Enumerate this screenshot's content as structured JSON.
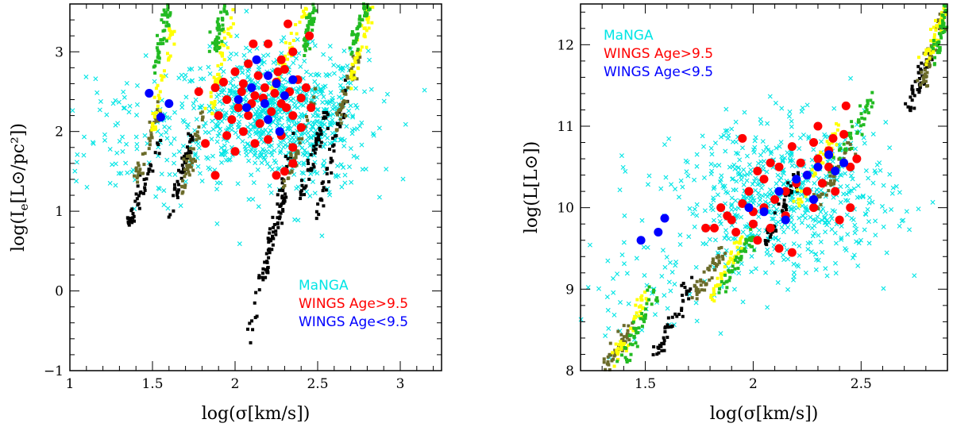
{
  "figure": {
    "panels": [
      {
        "id": "left",
        "xlabel_tex": "log(σ[km/s])",
        "ylabel_main": "log(I",
        "ylabel_sub": "e",
        "ylabel_rest": "[L⊙/pc²])",
        "xticks": [
          "1",
          "1.5",
          "2",
          "2.5",
          "3"
        ],
        "yticks": [
          "−1",
          "0",
          "1",
          "2",
          "3"
        ],
        "legend": [
          {
            "text": "MaNGA",
            "color": "#00e5e5"
          },
          {
            "text": "WINGS Age>9.5",
            "color": "#ff0000"
          },
          {
            "text": "WINGS Age<9.5",
            "color": "#0000ff"
          }
        ]
      },
      {
        "id": "right",
        "xlabel_tex": "log(σ[km/s])",
        "ylabel_main": "log(L[L⊙])",
        "xticks": [
          "1.5",
          "2",
          "2.5"
        ],
        "yticks": [
          "8",
          "9",
          "10",
          "11",
          "12"
        ],
        "legend": [
          {
            "text": "MaNGA",
            "color": "#00e5e5"
          },
          {
            "text": "WINGS Age>9.5",
            "color": "#ff0000"
          },
          {
            "text": "WINGS Age<9.5",
            "color": "#0000ff"
          }
        ]
      }
    ]
  },
  "chart_data": [
    {
      "type": "scatter",
      "xlabel": "log(σ[km/s])",
      "ylabel": "log(I_e[L⊙/pc²])",
      "xlim": [
        1.0,
        3.25
      ],
      "ylim": [
        -1.0,
        3.6
      ],
      "grid": false,
      "legend_position": "bottom-right",
      "series": [
        {
          "name": "MaNGA",
          "marker": "x",
          "color": "#00e5e5",
          "clusters": [
            [
              2.2,
              2.2,
              0.3,
              0.4,
              700
            ],
            [
              1.3,
              1.9,
              0.25,
              0.45,
              90
            ],
            [
              2.45,
              2.0,
              0.15,
              0.5,
              150
            ]
          ]
        },
        {
          "name": "WINGS Age>9.5",
          "marker": "filled-circle",
          "color": "#ff0000",
          "points": [
            [
              2.32,
              3.35
            ],
            [
              2.11,
              3.1
            ],
            [
              2.2,
              3.1
            ],
            [
              2.45,
              3.2
            ],
            [
              2.35,
              3.0
            ],
            [
              2.08,
              2.85
            ],
            [
              2.28,
              2.9
            ],
            [
              2.0,
              2.75
            ],
            [
              2.3,
              2.78
            ],
            [
              1.78,
              2.5
            ],
            [
              1.88,
              2.55
            ],
            [
              1.95,
              2.4
            ],
            [
              2.05,
              2.6
            ],
            [
              2.12,
              2.45
            ],
            [
              2.18,
              2.55
            ],
            [
              2.25,
              2.62
            ],
            [
              2.33,
              2.5
            ],
            [
              2.4,
              2.42
            ],
            [
              1.9,
              2.2
            ],
            [
              1.98,
              2.15
            ],
            [
              2.02,
              2.3
            ],
            [
              2.08,
              2.2
            ],
            [
              2.15,
              2.1
            ],
            [
              2.22,
              2.25
            ],
            [
              2.28,
              2.35
            ],
            [
              2.35,
              2.2
            ],
            [
              2.4,
              2.05
            ],
            [
              1.95,
              1.95
            ],
            [
              2.05,
              2.0
            ],
            [
              2.12,
              1.85
            ],
            [
              2.2,
              1.9
            ],
            [
              2.28,
              1.95
            ],
            [
              2.35,
              1.8
            ],
            [
              1.88,
              1.45
            ],
            [
              1.82,
              1.85
            ],
            [
              2.0,
              1.75
            ],
            [
              2.1,
              2.35
            ],
            [
              2.17,
              2.42
            ],
            [
              2.24,
              2.48
            ],
            [
              2.31,
              2.3
            ],
            [
              2.38,
              2.65
            ],
            [
              2.43,
              2.55
            ],
            [
              2.04,
              2.5
            ],
            [
              2.14,
              2.7
            ],
            [
              2.26,
              2.75
            ],
            [
              2.35,
              1.6
            ],
            [
              2.3,
              1.5
            ],
            [
              2.25,
              1.45
            ],
            [
              1.93,
              2.62
            ],
            [
              2.46,
              2.3
            ]
          ]
        },
        {
          "name": "WINGS Age<9.5",
          "marker": "filled-circle",
          "color": "#0000ff",
          "points": [
            [
              1.48,
              2.48
            ],
            [
              1.55,
              2.18
            ],
            [
              1.6,
              2.35
            ],
            [
              2.1,
              2.55
            ],
            [
              2.2,
              2.7
            ],
            [
              2.25,
              2.6
            ],
            [
              2.3,
              2.45
            ],
            [
              2.35,
              2.65
            ],
            [
              2.18,
              2.35
            ],
            [
              2.07,
              2.3
            ],
            [
              2.27,
              2.0
            ],
            [
              2.13,
              2.9
            ],
            [
              2.2,
              2.15
            ],
            [
              2.02,
              2.4
            ]
          ]
        },
        {
          "name": "",
          "marker": "filled-square",
          "color": "#000000",
          "note": "model tracks, lower segments",
          "tracks": [
            [
              1.35,
              1.55,
              0.8,
              1.9
            ],
            [
              1.6,
              1.75,
              0.95,
              2.0
            ],
            [
              2.1,
              2.35,
              -0.5,
              2.0
            ],
            [
              2.5,
              2.68,
              0.9,
              2.6
            ],
            [
              2.15,
              2.3,
              0.0,
              1.2
            ],
            [
              2.4,
              2.55,
              1.2,
              2.2
            ]
          ]
        },
        {
          "name": "",
          "marker": "filled-square",
          "color": "#6b6b2a",
          "note": "model tracks, middle segments",
          "tracks": [
            [
              1.4,
              1.55,
              1.4,
              2.3
            ],
            [
              1.68,
              1.8,
              1.2,
              2.2
            ],
            [
              2.3,
              2.5,
              1.3,
              2.6
            ],
            [
              2.6,
              2.75,
              2.0,
              3.0
            ]
          ]
        },
        {
          "name": "",
          "marker": "filled-square",
          "color": "#ffff00",
          "note": "model tracks, upper segments",
          "tracks": [
            [
              1.5,
              1.62,
              2.0,
              3.3
            ],
            [
              1.85,
              1.98,
              2.2,
              3.5
            ],
            [
              2.22,
              2.45,
              2.5,
              3.6
            ],
            [
              2.7,
              2.82,
              2.6,
              3.6
            ]
          ]
        },
        {
          "name": "",
          "marker": "filled-square",
          "color": "#22bb22",
          "note": "model tracks, top segments",
          "tracks": [
            [
              1.52,
              1.6,
              2.8,
              3.6
            ],
            [
              1.87,
              1.95,
              3.0,
              3.6
            ],
            [
              2.42,
              2.48,
              3.0,
              3.6
            ],
            [
              2.7,
              2.8,
              3.0,
              3.6
            ]
          ]
        }
      ]
    },
    {
      "type": "scatter",
      "xlabel": "log(σ[km/s])",
      "ylabel": "log(L[L⊙])",
      "xlim": [
        1.2,
        2.9
      ],
      "ylim": [
        8.0,
        12.5
      ],
      "grid": false,
      "legend_position": "top-left",
      "series": [
        {
          "name": "MaNGA",
          "marker": "x",
          "color": "#00e5e5",
          "clusters": [
            [
              2.15,
              10.1,
              0.25,
              0.45,
              650
            ],
            [
              1.5,
              9.0,
              0.2,
              0.35,
              60
            ]
          ]
        },
        {
          "name": "WINGS Age>9.5",
          "marker": "filled-circle",
          "color": "#ff0000",
          "points": [
            [
              2.37,
              10.85
            ],
            [
              2.48,
              10.6
            ],
            [
              2.45,
              10.5
            ],
            [
              2.42,
              10.9
            ],
            [
              2.43,
              11.25
            ],
            [
              2.35,
              10.7
            ],
            [
              2.3,
              10.6
            ],
            [
              2.25,
              10.4
            ],
            [
              2.2,
              10.3
            ],
            [
              2.15,
              10.2
            ],
            [
              2.1,
              10.1
            ],
            [
              2.05,
              10.0
            ],
            [
              2.0,
              9.95
            ],
            [
              1.95,
              10.05
            ],
            [
              1.9,
              9.85
            ],
            [
              1.88,
              9.9
            ],
            [
              1.85,
              10.0
            ],
            [
              1.82,
              9.75
            ],
            [
              1.78,
              9.75
            ],
            [
              1.95,
              10.85
            ],
            [
              2.02,
              9.6
            ],
            [
              2.12,
              9.5
            ],
            [
              2.18,
              9.45
            ],
            [
              2.08,
              9.75
            ],
            [
              2.28,
              10.0
            ],
            [
              2.32,
              10.3
            ],
            [
              2.38,
              10.2
            ],
            [
              2.22,
              10.55
            ],
            [
              2.12,
              10.5
            ],
            [
              2.05,
              10.35
            ],
            [
              1.98,
              10.2
            ],
            [
              2.0,
              9.8
            ],
            [
              2.15,
              9.9
            ],
            [
              2.25,
              10.2
            ],
            [
              2.35,
              10.5
            ],
            [
              2.45,
              10.0
            ],
            [
              2.4,
              9.85
            ],
            [
              2.28,
              10.8
            ],
            [
              1.92,
              9.7
            ],
            [
              2.08,
              10.55
            ],
            [
              2.18,
              10.75
            ],
            [
              2.3,
              11.0
            ],
            [
              2.02,
              10.45
            ]
          ]
        },
        {
          "name": "WINGS Age<9.5",
          "marker": "filled-circle",
          "color": "#0000ff",
          "points": [
            [
              1.48,
              9.6
            ],
            [
              1.56,
              9.7
            ],
            [
              1.59,
              9.87
            ],
            [
              1.98,
              10.0
            ],
            [
              2.05,
              9.95
            ],
            [
              2.12,
              10.2
            ],
            [
              2.2,
              10.35
            ],
            [
              2.25,
              10.4
            ],
            [
              2.3,
              10.5
            ],
            [
              2.35,
              10.65
            ],
            [
              2.38,
              10.45
            ],
            [
              2.42,
              10.55
            ],
            [
              2.15,
              9.85
            ],
            [
              2.28,
              10.1
            ]
          ]
        },
        {
          "name": "",
          "marker": "filled-square",
          "color": "#000000",
          "note": "model tracks",
          "tracks": [
            [
              1.55,
              1.72,
              8.2,
              9.1
            ],
            [
              2.05,
              2.2,
              9.5,
              10.4
            ],
            [
              2.72,
              2.82,
              11.2,
              11.9
            ]
          ]
        },
        {
          "name": "",
          "marker": "filled-square",
          "color": "#6b6b2a",
          "note": "model tracks",
          "tracks": [
            [
              1.3,
              1.45,
              8.0,
              8.6
            ],
            [
              1.73,
              1.86,
              8.9,
              9.5
            ],
            [
              2.28,
              2.45,
              10.0,
              10.8
            ],
            [
              2.78,
              2.88,
              11.5,
              12.3
            ]
          ]
        },
        {
          "name": "",
          "marker": "filled-square",
          "color": "#ffff00",
          "note": "model tracks",
          "tracks": [
            [
              1.35,
              1.5,
              8.1,
              8.9
            ],
            [
              1.8,
              1.95,
              8.9,
              9.6
            ],
            [
              2.2,
              2.4,
              10.0,
              11.0
            ],
            [
              2.8,
              2.88,
              11.8,
              12.4
            ]
          ]
        },
        {
          "name": "",
          "marker": "filled-square",
          "color": "#22bb22",
          "note": "model tracks",
          "tracks": [
            [
              1.4,
              1.55,
              8.1,
              9.0
            ],
            [
              1.85,
              2.0,
              9.0,
              9.7
            ],
            [
              2.35,
              2.55,
              10.4,
              11.3
            ],
            [
              2.83,
              2.9,
              11.7,
              12.5
            ]
          ]
        }
      ]
    }
  ]
}
